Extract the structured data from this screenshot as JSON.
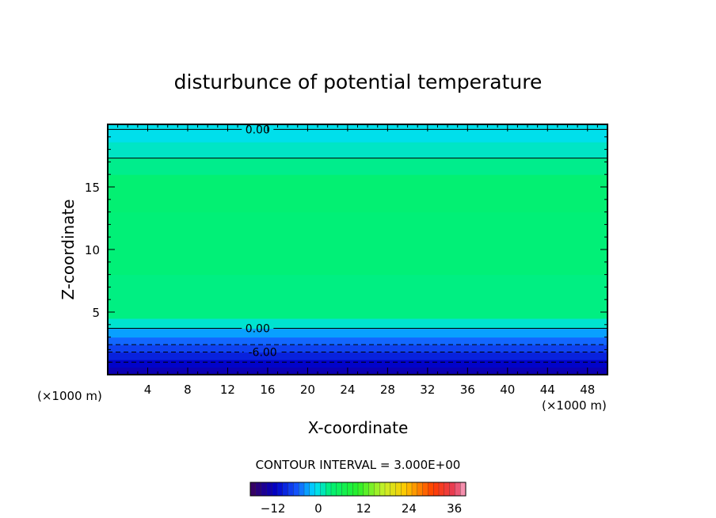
{
  "chart_data": {
    "type": "heatmap",
    "title": "disturbunce of potential temperature",
    "xlabel": "X-coordinate",
    "ylabel": "Z-coordinate",
    "x_unit_left": "(×1000 m)",
    "x_unit_right": "(×1000 m)",
    "xlim": [
      0,
      50
    ],
    "ylim": [
      0,
      20
    ],
    "x_ticks": [
      4,
      8,
      12,
      16,
      20,
      24,
      28,
      32,
      36,
      40,
      44,
      48
    ],
    "y_ticks": [
      5,
      10,
      15
    ],
    "contour_interval_text": "CONTOUR INTERVAL = 3.000E+00",
    "colorbar": {
      "ticks": [
        -12,
        0,
        12,
        24,
        36
      ],
      "range": [
        -18,
        39
      ]
    },
    "field_layers": [
      {
        "z0": 0.0,
        "z1": 0.6,
        "value": -12.5
      },
      {
        "z0": 0.6,
        "z1": 1.2,
        "value": -11
      },
      {
        "z0": 1.2,
        "z1": 1.8,
        "value": -9
      },
      {
        "z0": 1.8,
        "z1": 2.4,
        "value": -7
      },
      {
        "z0": 2.4,
        "z1": 3.0,
        "value": -5
      },
      {
        "z0": 3.0,
        "z1": 3.7,
        "value": -3
      },
      {
        "z0": 3.7,
        "z1": 4.5,
        "value": 0.5
      },
      {
        "z0": 4.5,
        "z1": 8.0,
        "value": 2.8
      },
      {
        "z0": 8.0,
        "z1": 13.0,
        "value": 3.2
      },
      {
        "z0": 13.0,
        "z1": 16.0,
        "value": 3.6
      },
      {
        "z0": 16.0,
        "z1": 17.3,
        "value": 2.5
      },
      {
        "z0": 17.3,
        "z1": 18.6,
        "value": 0.8
      },
      {
        "z0": 18.6,
        "z1": 20.0,
        "value": -0.3
      }
    ],
    "contours": [
      {
        "z": 19.6,
        "value": 0,
        "style": "solid",
        "label": "0.00",
        "label_x": 15
      },
      {
        "z": 17.3,
        "value": 3,
        "style": "solid"
      },
      {
        "z": 3.7,
        "value": 0,
        "style": "solid",
        "label": "0.00",
        "label_x": 15
      },
      {
        "z": 2.4,
        "value": -3,
        "style": "dashed"
      },
      {
        "z": 1.8,
        "value": -6,
        "style": "dashed",
        "label": "-6.00",
        "label_x": 15.5
      },
      {
        "z": 1.0,
        "value": -9,
        "style": "dashed"
      }
    ]
  }
}
